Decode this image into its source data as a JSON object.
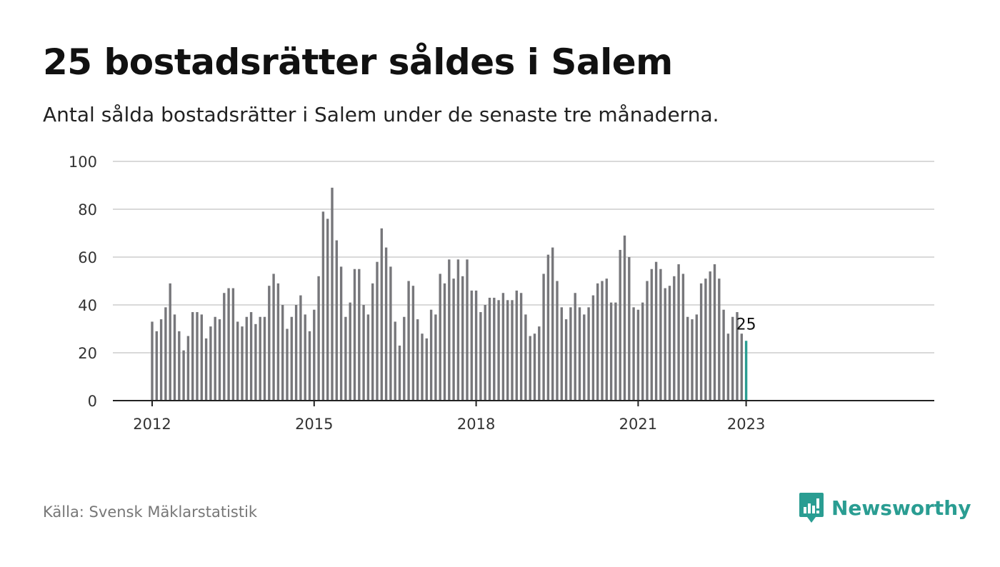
{
  "title": "25 bostadsrätter såldes i Salem",
  "subtitle": "Antal sålda bostadsrätter i Salem under de senaste tre månaderna.",
  "source": "Källa: Svensk Mäklarstatistik",
  "brand": {
    "name": "Newsworthy",
    "color": "#2a9d92",
    "icon": "bar-chart-speech-bubble-icon"
  },
  "colors": {
    "bar": "#77777b",
    "highlight": "#2a9d92",
    "grid": "#d9d9d9",
    "axis": "#222222"
  },
  "chart_data": {
    "type": "bar",
    "title": "25 bostadsrätter såldes i Salem",
    "subtitle": "Antal sålda bostadsrätter i Salem under de senaste tre månaderna.",
    "xlabel": "",
    "ylabel": "",
    "ylim": [
      0,
      100
    ],
    "yticks": [
      0,
      20,
      40,
      60,
      80,
      100
    ],
    "xticks": [
      "2012",
      "2015",
      "2018",
      "2021",
      "2023"
    ],
    "grid": true,
    "legend": "none",
    "start": "2012-01",
    "frequency": "monthly",
    "values": [
      33,
      29,
      34,
      39,
      49,
      36,
      29,
      21,
      27,
      37,
      37,
      36,
      26,
      31,
      35,
      34,
      45,
      47,
      47,
      33,
      31,
      35,
      37,
      32,
      35,
      35,
      48,
      53,
      49,
      40,
      30,
      35,
      40,
      44,
      36,
      29,
      38,
      52,
      79,
      76,
      89,
      67,
      56,
      35,
      41,
      55,
      55,
      40,
      36,
      49,
      58,
      72,
      64,
      56,
      33,
      23,
      35,
      50,
      48,
      34,
      28,
      26,
      38,
      36,
      53,
      49,
      59,
      51,
      59,
      52,
      59,
      46,
      46,
      37,
      40,
      43,
      43,
      42,
      45,
      42,
      42,
      46,
      45,
      36,
      27,
      28,
      31,
      53,
      61,
      64,
      50,
      39,
      34,
      39,
      45,
      39,
      36,
      39,
      44,
      49,
      50,
      51,
      41,
      41,
      63,
      69,
      60,
      39,
      38,
      41,
      50,
      55,
      58,
      55,
      47,
      48,
      52,
      57,
      53,
      35,
      34,
      36,
      49,
      51,
      54,
      57,
      51,
      38,
      28,
      35,
      37,
      28,
      25
    ],
    "highlight_last": true,
    "annotations": [
      {
        "label": "25",
        "target": "last"
      }
    ]
  }
}
